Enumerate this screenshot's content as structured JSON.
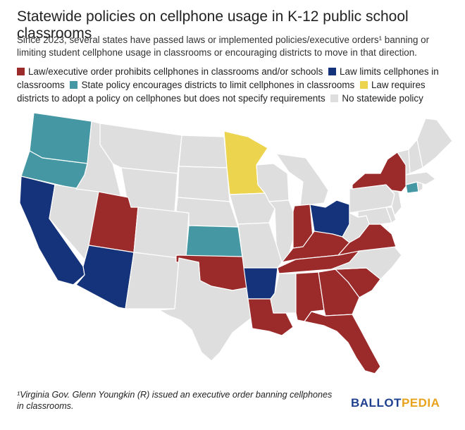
{
  "title": "Statewide policies on cellphone usage in K-12 public school classrooms",
  "subtitle": "Since 2023, several states have passed laws or implemented policies/executive orders¹ banning or limiting student cellphone usage in classrooms or encouraging districts to move in that direction.",
  "legend": [
    {
      "key": "prohibits",
      "label": "Law/executive order prohibits cellphones in classrooms and/or schools",
      "color": "#9b2a2a"
    },
    {
      "key": "limits",
      "label": "Law limits cellphones in classrooms",
      "color": "#14337a"
    },
    {
      "key": "encourages",
      "label": "State policy encourages districts to limit cellphones in classrooms",
      "color": "#4598a3"
    },
    {
      "key": "requires",
      "label": "Law requires districts to adopt a policy on cellphones but does not specify requirements",
      "color": "#ecd44e"
    },
    {
      "key": "none",
      "label": "No statewide policy",
      "color": "#dedede"
    }
  ],
  "states": {
    "WA": "encourages",
    "OR": "encourages",
    "CA": "limits",
    "NV": "none",
    "ID": "none",
    "MT": "none",
    "WY": "none",
    "UT": "prohibits",
    "CO": "none",
    "AZ": "limits",
    "NM": "none",
    "ND": "none",
    "SD": "none",
    "NE": "none",
    "KS": "encourages",
    "OK": "prohibits",
    "TX": "none",
    "MN": "requires",
    "IA": "none",
    "MO": "none",
    "AR": "limits",
    "LA": "prohibits",
    "WI": "none",
    "IL": "none",
    "MI": "none",
    "IN": "prohibits",
    "OH": "limits",
    "KY": "prohibits",
    "TN": "prohibits",
    "MS": "none",
    "AL": "prohibits",
    "GA": "prohibits",
    "FL": "prohibits",
    "SC": "prohibits",
    "NC": "none",
    "VA": "prohibits",
    "WV": "none",
    "PA": "none",
    "NY": "prohibits",
    "VT": "none",
    "NH": "none",
    "ME": "none",
    "MA": "none",
    "CT": "encourages",
    "RI": "none",
    "NJ": "none",
    "DE": "none",
    "MD": "none"
  },
  "footnote": "¹Virginia Gov. Glenn Youngkin (R) issued an executive order banning cellphones in classrooms.",
  "logo": {
    "part1": "BALLOT",
    "part2": "PEDIA"
  }
}
